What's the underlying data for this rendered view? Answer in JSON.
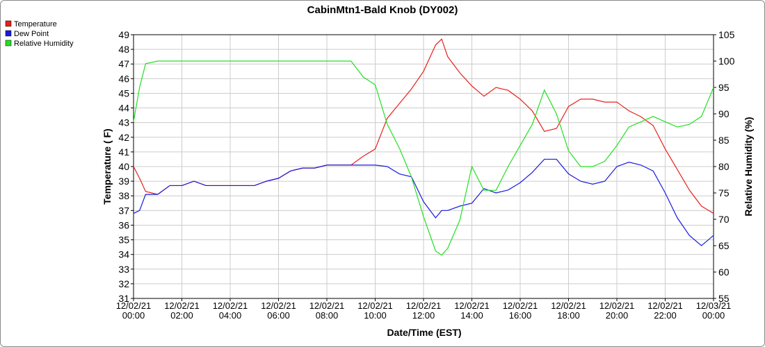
{
  "chart_data": {
    "type": "line",
    "title": "CabinMtn1-Bald Knob (DY002)",
    "x_label": "Date/Time (EST)",
    "y_label": "Temperature ( F)",
    "y2_label": "Relative Humidity (%)",
    "x": [
      0,
      0.25,
      0.5,
      1,
      1.5,
      2,
      2.5,
      3,
      3.5,
      4,
      4.5,
      5,
      5.5,
      6,
      6.5,
      7,
      7.5,
      8,
      8.5,
      9,
      9.5,
      10,
      10.5,
      11,
      11.5,
      12,
      12.5,
      12.75,
      13,
      13.5,
      14,
      14.5,
      15,
      15.5,
      16,
      16.5,
      17,
      17.5,
      18,
      18.5,
      19,
      19.5,
      20,
      20.5,
      21,
      21.5,
      22,
      22.5,
      23,
      23.5,
      24
    ],
    "series": [
      {
        "name": "Temperature",
        "color": "#e8201a",
        "values": [
          40.0,
          39.2,
          38.3,
          38.1,
          38.7,
          38.7,
          39.0,
          38.7,
          38.7,
          38.7,
          38.7,
          38.7,
          39.0,
          39.2,
          39.7,
          39.9,
          39.9,
          40.1,
          40.1,
          40.1,
          40.7,
          41.2,
          43.3,
          44.3,
          45.3,
          46.5,
          48.3,
          48.7,
          47.5,
          46.4,
          45.5,
          44.8,
          45.4,
          45.2,
          44.6,
          43.8,
          42.4,
          42.6,
          44.1,
          44.6,
          44.6,
          44.4,
          44.4,
          43.8,
          43.4,
          42.8,
          41.2,
          39.8,
          38.4,
          37.3,
          36.8
        ]
      },
      {
        "name": "Dew Point",
        "color": "#1a1ae0",
        "values": [
          36.8,
          37.0,
          38.1,
          38.1,
          38.7,
          38.7,
          39.0,
          38.7,
          38.7,
          38.7,
          38.7,
          38.7,
          39.0,
          39.2,
          39.7,
          39.9,
          39.9,
          40.1,
          40.1,
          40.1,
          40.1,
          40.1,
          40.0,
          39.5,
          39.3,
          37.6,
          36.5,
          37.0,
          37.0,
          37.3,
          37.5,
          38.5,
          38.2,
          38.4,
          38.9,
          39.6,
          40.5,
          40.5,
          39.5,
          39.0,
          38.8,
          39.0,
          40.0,
          40.3,
          40.1,
          39.7,
          38.2,
          36.5,
          35.3,
          34.6,
          35.3
        ]
      },
      {
        "name": "Relative Humidity",
        "color": "#22e022",
        "axis": "y2",
        "values": [
          88.5,
          95,
          99.5,
          100,
          100,
          100,
          100,
          100,
          100,
          100,
          100,
          100,
          100,
          100,
          100,
          100,
          100,
          100,
          100,
          100,
          97,
          95.5,
          88,
          83.5,
          78,
          70.5,
          64,
          63.2,
          64.5,
          69.8,
          80,
          75.5,
          75.5,
          80,
          84,
          88,
          94.5,
          90,
          83,
          80,
          80,
          81,
          84,
          87.5,
          88.5,
          89.5,
          88.5,
          87.5,
          88,
          89.5,
          95
        ]
      }
    ],
    "xlim": [
      0,
      24
    ],
    "xticks": [
      {
        "value": 0,
        "label": "12/02/21 00:00"
      },
      {
        "value": 2,
        "label": "12/02/21 02:00"
      },
      {
        "value": 4,
        "label": "12/02/21 04:00"
      },
      {
        "value": 6,
        "label": "12/02/21 06:00"
      },
      {
        "value": 8,
        "label": "12/02/21 08:00"
      },
      {
        "value": 10,
        "label": "12/02/21 10:00"
      },
      {
        "value": 12,
        "label": "12/02/21 12:00"
      },
      {
        "value": 14,
        "label": "12/02/21 14:00"
      },
      {
        "value": 16,
        "label": "12/02/21 16:00"
      },
      {
        "value": 18,
        "label": "12/02/21 18:00"
      },
      {
        "value": 20,
        "label": "12/02/21 20:00"
      },
      {
        "value": 22,
        "label": "12/02/21 22:00"
      },
      {
        "value": 24,
        "label": "12/03/21 00:00"
      }
    ],
    "ylim": [
      31,
      49
    ],
    "yticks": [
      31,
      32,
      33,
      34,
      35,
      36,
      37,
      38,
      39,
      40,
      41,
      42,
      43,
      44,
      45,
      46,
      47,
      48,
      49
    ],
    "y2lim": [
      55,
      105
    ],
    "y2ticks": [
      55,
      60,
      65,
      70,
      75,
      80,
      85,
      90,
      95,
      100,
      105
    ],
    "grid": true,
    "legend": "top-left"
  }
}
